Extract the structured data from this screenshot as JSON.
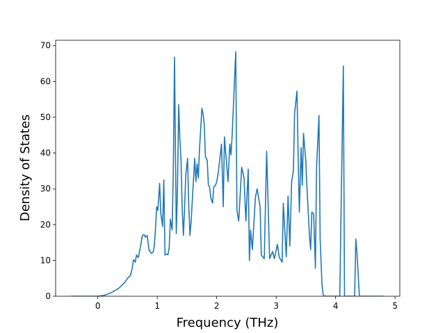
{
  "chart_data": {
    "type": "line",
    "x_label": "Frequency (THz)",
    "y_label": "Density of States",
    "color": "#1f77b4",
    "xlim": [
      -0.71,
      5.08
    ],
    "xticks": [
      0,
      1,
      2,
      3,
      4,
      5
    ],
    "ylim": [
      0,
      71.5
    ],
    "yticks": [
      0,
      10,
      20,
      30,
      40,
      50,
      60,
      70
    ],
    "x": [
      -0.45,
      0,
      0.1,
      0.15,
      0.2,
      0.25,
      0.3,
      0.35,
      0.4,
      0.45,
      0.5,
      0.55,
      0.58,
      0.6,
      0.63,
      0.65,
      0.68,
      0.72,
      0.75,
      0.78,
      0.8,
      0.83,
      0.86,
      0.9,
      0.93,
      0.95,
      0.97,
      0.99,
      1.01,
      1.04,
      1.06,
      1.09,
      1.11,
      1.13,
      1.16,
      1.18,
      1.2,
      1.22,
      1.25,
      1.27,
      1.29,
      1.32,
      1.34,
      1.36,
      1.38,
      1.4,
      1.42,
      1.44,
      1.46,
      1.48,
      1.51,
      1.53,
      1.55,
      1.57,
      1.6,
      1.63,
      1.65,
      1.67,
      1.69,
      1.71,
      1.73,
      1.75,
      1.77,
      1.79,
      1.81,
      1.84,
      1.86,
      1.88,
      1.9,
      1.93,
      1.95,
      1.98,
      2.0,
      2.03,
      2.08,
      2.11,
      2.13,
      2.19,
      2.22,
      2.24,
      2.26,
      2.32,
      2.34,
      2.37,
      2.42,
      2.46,
      2.49,
      2.53,
      2.55,
      2.57,
      2.6,
      2.65,
      2.68,
      2.73,
      2.75,
      2.8,
      2.84,
      2.89,
      2.94,
      2.97,
      3.02,
      3.05,
      3.1,
      3.12,
      3.17,
      3.2,
      3.23,
      3.26,
      3.29,
      3.31,
      3.35,
      3.37,
      3.39,
      3.42,
      3.44,
      3.46,
      3.5,
      3.51,
      3.56,
      3.58,
      3.6,
      3.63,
      3.66,
      3.68,
      3.72,
      3.74,
      3.77,
      3.79,
      3.81,
      4.07,
      4.13,
      4.15,
      4.32,
      4.34,
      4.36,
      4.4,
      4.81
    ],
    "values": [
      0,
      0,
      0.2,
      0.5,
      0.8,
      1.2,
      1.7,
      2.2,
      3,
      3.8,
      5,
      5.8,
      8,
      10.2,
      9.5,
      11.5,
      10.8,
      14,
      17,
      17.2,
      16.5,
      17,
      13,
      12,
      12.3,
      14,
      19,
      25,
      24,
      31.5,
      23,
      19.5,
      32.5,
      11.5,
      11.8,
      11.6,
      13.5,
      21.5,
      18.5,
      35,
      66.8,
      17.5,
      30,
      53.5,
      44,
      38,
      24,
      17,
      25,
      34,
      38.5,
      25,
      17,
      21,
      30,
      38.5,
      32,
      37,
      33,
      41,
      46.5,
      52.5,
      51,
      48,
      39,
      38,
      31,
      30.5,
      27.5,
      26,
      30.5,
      31,
      32,
      35,
      42.5,
      25,
      44.5,
      32,
      42.5,
      39.5,
      45,
      68.3,
      24,
      21,
      36,
      33,
      21,
      35.5,
      10,
      18.5,
      13,
      27.5,
      30,
      25,
      11.5,
      10.5,
      40.5,
      10.5,
      12.5,
      10.5,
      14.5,
      11,
      9.5,
      26,
      11,
      28,
      14,
      32,
      35,
      51,
      57.3,
      39,
      23.5,
      41.5,
      31,
      45.5,
      37.5,
      33,
      17,
      13,
      23.5,
      23,
      7.8,
      36,
      50.5,
      16,
      3.5,
      0.5,
      0,
      0,
      64.3,
      0,
      0,
      16,
      12,
      0,
      0
    ]
  }
}
